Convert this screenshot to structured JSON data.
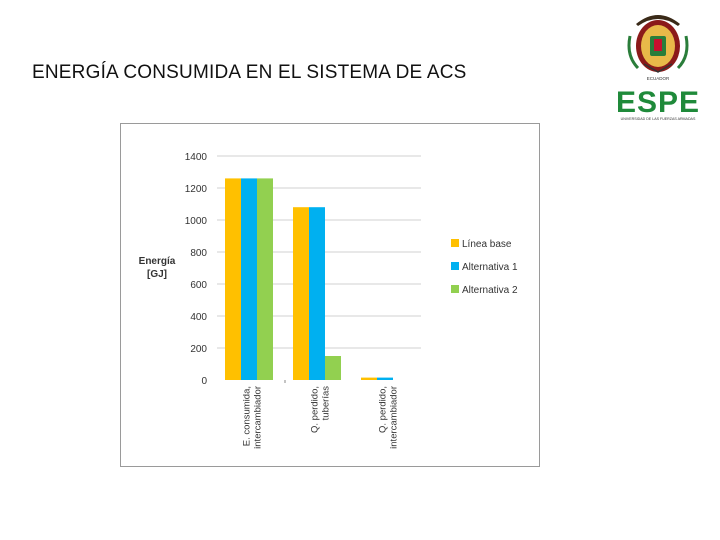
{
  "slide": {
    "title": "ENERGÍA CONSUMIDA EN EL SISTEMA DE ACS"
  },
  "logo": {
    "text": "ESPE",
    "subtitle": "UNIVERSIDAD DE LAS FUERZAS ARMADAS",
    "crest_text": "ECUADOR",
    "brand_color": "#1f8a3a"
  },
  "chart_data": {
    "type": "bar",
    "ylabel": "Energía [GJ]",
    "ylabel_lines": [
      "Energía",
      "[GJ]"
    ],
    "ylim": [
      0,
      1400
    ],
    "yticks": [
      0,
      200,
      400,
      600,
      800,
      1000,
      1200,
      1400
    ],
    "grid": true,
    "legend_position": "right",
    "categories": [
      [
        "E. consumida,",
        "intercambiador"
      ],
      [
        "Q. perdido,",
        "tuberías"
      ],
      [
        "Q. perdido,",
        "intercambiador"
      ]
    ],
    "series": [
      {
        "name": "Línea base",
        "color": "#ffc000",
        "values": [
          1260,
          1080,
          15
        ]
      },
      {
        "name": "Alternativa 1",
        "color": "#00b0f0",
        "values": [
          1260,
          1080,
          15
        ]
      },
      {
        "name": "Alternativa 2",
        "color": "#92d050",
        "values": [
          1260,
          150,
          0
        ]
      }
    ]
  }
}
